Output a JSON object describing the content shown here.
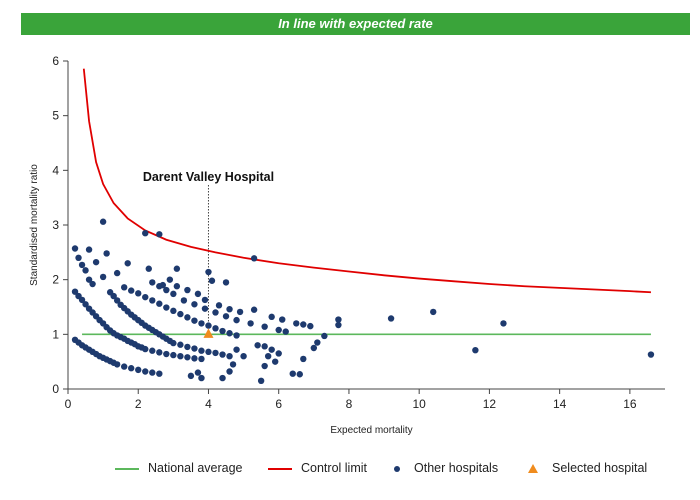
{
  "banner": {
    "text": "In line with expected rate",
    "color": "#3aa43a"
  },
  "chart_data": {
    "type": "scatter",
    "xlabel": "Expected mortality",
    "ylabel": "Standardised mortality ratio",
    "xlim": [
      0,
      17
    ],
    "ylim": [
      0,
      6
    ],
    "xticks": [
      0,
      2,
      4,
      6,
      8,
      10,
      12,
      14,
      16
    ],
    "yticks": [
      0,
      1,
      2,
      3,
      4,
      5,
      6
    ],
    "grid": false,
    "legend_position": "bottom",
    "annotation": {
      "text": "Darent Valley Hospital",
      "x": 4.0
    },
    "series": [
      {
        "name": "National average",
        "kind": "line",
        "color": "#5cb85c",
        "points": [
          [
            0.4,
            1.0
          ],
          [
            16.6,
            1.0
          ]
        ]
      },
      {
        "name": "Control limit",
        "kind": "line",
        "color": "#e00000",
        "points": [
          [
            0.45,
            5.86
          ],
          [
            0.6,
            4.9
          ],
          [
            0.8,
            4.15
          ],
          [
            1.0,
            3.75
          ],
          [
            1.3,
            3.4
          ],
          [
            1.7,
            3.12
          ],
          [
            2.2,
            2.9
          ],
          [
            2.8,
            2.73
          ],
          [
            3.5,
            2.6
          ],
          [
            4.2,
            2.5
          ],
          [
            5.0,
            2.4
          ],
          [
            6.0,
            2.3
          ],
          [
            7.0,
            2.22
          ],
          [
            8.0,
            2.15
          ],
          [
            9.0,
            2.08
          ],
          [
            10.0,
            2.02
          ],
          [
            11.0,
            1.97
          ],
          [
            12.0,
            1.92
          ],
          [
            13.0,
            1.88
          ],
          [
            14.0,
            1.85
          ],
          [
            15.0,
            1.82
          ],
          [
            16.0,
            1.79
          ],
          [
            16.6,
            1.77
          ]
        ]
      },
      {
        "name": "Other hospitals",
        "kind": "scatter",
        "color": "#1e3a6e",
        "points": [
          [
            0.2,
            2.57
          ],
          [
            0.3,
            2.4
          ],
          [
            0.4,
            2.27
          ],
          [
            0.5,
            2.17
          ],
          [
            0.6,
            2.55
          ],
          [
            0.8,
            2.32
          ],
          [
            1.0,
            3.06
          ],
          [
            1.0,
            2.05
          ],
          [
            1.1,
            2.48
          ],
          [
            0.6,
            2.0
          ],
          [
            0.7,
            1.92
          ],
          [
            1.4,
            2.12
          ],
          [
            1.7,
            2.3
          ],
          [
            2.2,
            2.85
          ],
          [
            2.6,
            2.83
          ],
          [
            2.3,
            2.2
          ],
          [
            3.1,
            2.2
          ],
          [
            2.9,
            2.0
          ],
          [
            2.7,
            1.9
          ],
          [
            0.2,
            1.78
          ],
          [
            0.3,
            1.7
          ],
          [
            0.4,
            1.63
          ],
          [
            0.5,
            1.55
          ],
          [
            0.6,
            1.47
          ],
          [
            0.7,
            1.4
          ],
          [
            0.8,
            1.33
          ],
          [
            0.9,
            1.26
          ],
          [
            1.0,
            1.2
          ],
          [
            1.1,
            1.13
          ],
          [
            1.2,
            1.07
          ],
          [
            1.3,
            1.02
          ],
          [
            1.4,
            0.98
          ],
          [
            1.5,
            0.95
          ],
          [
            1.6,
            0.92
          ],
          [
            1.7,
            0.88
          ],
          [
            1.8,
            0.85
          ],
          [
            1.9,
            0.82
          ],
          [
            2.0,
            0.78
          ],
          [
            2.1,
            0.76
          ],
          [
            2.2,
            0.73
          ],
          [
            2.4,
            0.7
          ],
          [
            2.6,
            0.67
          ],
          [
            2.8,
            0.64
          ],
          [
            3.0,
            0.62
          ],
          [
            3.2,
            0.6
          ],
          [
            3.4,
            0.58
          ],
          [
            3.6,
            0.56
          ],
          [
            3.8,
            0.55
          ],
          [
            0.2,
            0.9
          ],
          [
            0.3,
            0.85
          ],
          [
            0.4,
            0.8
          ],
          [
            0.5,
            0.76
          ],
          [
            0.6,
            0.72
          ],
          [
            0.7,
            0.68
          ],
          [
            0.8,
            0.64
          ],
          [
            0.9,
            0.6
          ],
          [
            1.0,
            0.57
          ],
          [
            1.1,
            0.54
          ],
          [
            1.2,
            0.51
          ],
          [
            1.3,
            0.48
          ],
          [
            1.4,
            0.45
          ],
          [
            1.6,
            0.41
          ],
          [
            1.8,
            0.38
          ],
          [
            2.0,
            0.35
          ],
          [
            2.2,
            0.32
          ],
          [
            2.4,
            0.3
          ],
          [
            2.6,
            0.28
          ],
          [
            1.2,
            1.77
          ],
          [
            1.3,
            1.7
          ],
          [
            1.4,
            1.62
          ],
          [
            1.5,
            1.54
          ],
          [
            1.6,
            1.48
          ],
          [
            1.7,
            1.42
          ],
          [
            1.8,
            1.36
          ],
          [
            1.9,
            1.31
          ],
          [
            2.0,
            1.26
          ],
          [
            2.1,
            1.21
          ],
          [
            2.2,
            1.16
          ],
          [
            2.3,
            1.12
          ],
          [
            2.4,
            1.08
          ],
          [
            2.5,
            1.04
          ],
          [
            2.6,
            1.0
          ],
          [
            2.7,
            0.96
          ],
          [
            2.8,
            0.92
          ],
          [
            2.9,
            0.88
          ],
          [
            3.0,
            0.84
          ],
          [
            3.2,
            0.81
          ],
          [
            3.4,
            0.77
          ],
          [
            3.6,
            0.74
          ],
          [
            3.8,
            0.7
          ],
          [
            4.0,
            0.68
          ],
          [
            4.2,
            0.66
          ],
          [
            4.4,
            0.63
          ],
          [
            4.6,
            0.6
          ],
          [
            1.6,
            1.86
          ],
          [
            1.8,
            1.8
          ],
          [
            2.0,
            1.75
          ],
          [
            2.2,
            1.68
          ],
          [
            2.4,
            1.62
          ],
          [
            2.6,
            1.56
          ],
          [
            2.8,
            1.49
          ],
          [
            3.0,
            1.43
          ],
          [
            3.2,
            1.37
          ],
          [
            3.4,
            1.31
          ],
          [
            3.6,
            1.25
          ],
          [
            3.8,
            1.2
          ],
          [
            4.0,
            1.16
          ],
          [
            4.2,
            1.11
          ],
          [
            4.4,
            1.06
          ],
          [
            4.6,
            1.02
          ],
          [
            4.8,
            0.98
          ],
          [
            2.4,
            1.95
          ],
          [
            2.6,
            1.88
          ],
          [
            2.8,
            1.81
          ],
          [
            3.0,
            1.74
          ],
          [
            3.3,
            1.62
          ],
          [
            3.6,
            1.55
          ],
          [
            3.9,
            1.47
          ],
          [
            4.2,
            1.4
          ],
          [
            4.5,
            1.33
          ],
          [
            4.8,
            1.26
          ],
          [
            5.2,
            1.2
          ],
          [
            5.6,
            1.14
          ],
          [
            6.0,
            1.08
          ],
          [
            3.1,
            1.88
          ],
          [
            3.4,
            1.81
          ],
          [
            3.7,
            1.74
          ],
          [
            4.0,
            2.14
          ],
          [
            4.1,
            1.98
          ],
          [
            4.5,
            1.95
          ],
          [
            5.3,
            2.39
          ],
          [
            3.9,
            1.63
          ],
          [
            4.3,
            1.53
          ],
          [
            4.6,
            1.46
          ],
          [
            4.9,
            1.41
          ],
          [
            5.3,
            1.45
          ],
          [
            5.8,
            1.32
          ],
          [
            6.1,
            1.27
          ],
          [
            6.5,
            1.2
          ],
          [
            6.7,
            1.18
          ],
          [
            6.9,
            1.15
          ],
          [
            7.7,
            1.27
          ],
          [
            7.7,
            1.17
          ],
          [
            9.2,
            1.29
          ],
          [
            10.4,
            1.41
          ],
          [
            12.4,
            1.2
          ],
          [
            11.6,
            0.71
          ],
          [
            16.6,
            0.63
          ],
          [
            5.4,
            0.8
          ],
          [
            5.6,
            0.78
          ],
          [
            5.8,
            0.72
          ],
          [
            6.0,
            0.65
          ],
          [
            5.7,
            0.6
          ],
          [
            5.9,
            0.5
          ],
          [
            5.6,
            0.42
          ],
          [
            6.4,
            0.28
          ],
          [
            6.6,
            0.27
          ],
          [
            5.5,
            0.15
          ],
          [
            6.7,
            0.55
          ],
          [
            7.0,
            0.75
          ],
          [
            7.1,
            0.85
          ],
          [
            7.3,
            0.97
          ],
          [
            6.2,
            1.05
          ],
          [
            4.8,
            0.72
          ],
          [
            5.0,
            0.6
          ],
          [
            4.7,
            0.45
          ],
          [
            4.4,
            0.2
          ],
          [
            4.6,
            0.32
          ],
          [
            3.5,
            0.24
          ],
          [
            3.8,
            0.2
          ],
          [
            3.7,
            0.3
          ]
        ]
      },
      {
        "name": "Selected hospital",
        "kind": "scatter",
        "marker": "triangle",
        "color": "#f08c1e",
        "points": [
          [
            4.0,
            1.0
          ]
        ]
      }
    ]
  }
}
